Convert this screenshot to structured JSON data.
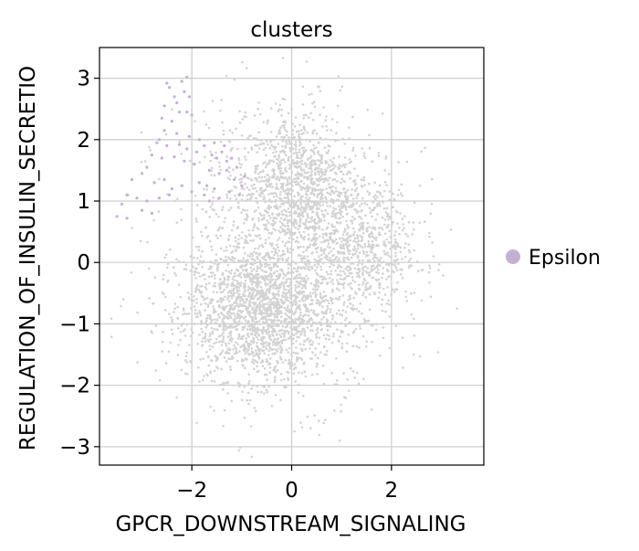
{
  "chart_data": {
    "type": "scatter",
    "title": "clusters",
    "xlabel": "GPCR_DOWNSTREAM_SIGNALING",
    "ylabel": "REGULATION_OF_INSULIN_SECRETIO",
    "xlim": [
      -3.85,
      3.85
    ],
    "ylim": [
      -3.3,
      3.5
    ],
    "x_ticks": [
      -2,
      0,
      2
    ],
    "x_tick_labels": [
      "−2",
      "0",
      "2"
    ],
    "y_ticks": [
      -3,
      -2,
      -1,
      0,
      1,
      2,
      3
    ],
    "y_tick_labels": [
      "−3",
      "−2",
      "−1",
      "0",
      "1",
      "2",
      "3"
    ],
    "grid": true,
    "legend_position": "right",
    "series": [
      {
        "name": "Epsilon",
        "color": "#c5b0d5",
        "points": [
          [
            -2.5,
            2.92
          ],
          [
            -2.45,
            2.85
          ],
          [
            -2.2,
            2.95
          ],
          [
            -2.15,
            2.78
          ],
          [
            -2.05,
            2.7
          ],
          [
            -2.1,
            3.02
          ],
          [
            -2.3,
            2.6
          ],
          [
            -2.25,
            2.45
          ],
          [
            -2.1,
            2.45
          ],
          [
            -2.0,
            2.4
          ],
          [
            -2.6,
            2.35
          ],
          [
            -2.4,
            2.3
          ],
          [
            -2.55,
            2.15
          ],
          [
            -2.3,
            2.1
          ],
          [
            -2.05,
            2.05
          ],
          [
            -2.7,
            1.95
          ],
          [
            -2.5,
            1.9
          ],
          [
            -2.25,
            1.92
          ],
          [
            -2.1,
            1.85
          ],
          [
            -1.9,
            1.8
          ],
          [
            -2.8,
            1.75
          ],
          [
            -2.6,
            1.7
          ],
          [
            -2.35,
            1.72
          ],
          [
            -2.15,
            1.65
          ],
          [
            -1.95,
            1.6
          ],
          [
            -1.75,
            1.9
          ],
          [
            -1.6,
            1.75
          ],
          [
            -1.5,
            1.7
          ],
          [
            -1.4,
            1.8
          ],
          [
            -1.3,
            1.65
          ],
          [
            -1.2,
            1.7
          ],
          [
            -1.1,
            1.55
          ],
          [
            -1.3,
            1.5
          ],
          [
            -1.45,
            1.45
          ],
          [
            -1.65,
            1.5
          ],
          [
            -2.9,
            1.55
          ],
          [
            -3.0,
            1.45
          ],
          [
            -3.2,
            1.35
          ],
          [
            -2.75,
            1.3
          ],
          [
            -2.55,
            1.35
          ],
          [
            -2.4,
            1.2
          ],
          [
            -2.2,
            1.25
          ],
          [
            -1.85,
            1.3
          ],
          [
            -1.7,
            1.25
          ],
          [
            -1.55,
            1.2
          ],
          [
            -1.0,
            1.25
          ],
          [
            -1.05,
            1.1
          ],
          [
            -1.25,
            1.15
          ],
          [
            -1.45,
            1.05
          ],
          [
            -1.65,
            1.0
          ],
          [
            -3.3,
            1.1
          ],
          [
            -3.1,
            1.05
          ],
          [
            -2.9,
            1.0
          ],
          [
            -2.65,
            1.05
          ],
          [
            -3.4,
            0.95
          ],
          [
            -3.0,
            0.85
          ],
          [
            -2.8,
            0.8
          ],
          [
            -3.3,
            0.72
          ],
          [
            -3.5,
            0.75
          ],
          [
            -2.45,
            1.1
          ],
          [
            -2.0,
            1.15
          ],
          [
            -1.75,
            1.1
          ],
          [
            -2.55,
            2.55
          ],
          [
            -2.35,
            2.7
          ],
          [
            -1.85,
            2.0
          ],
          [
            -1.55,
            1.95
          ],
          [
            -1.35,
            1.9
          ],
          [
            -0.95,
            1.4
          ],
          [
            -1.15,
            1.35
          ],
          [
            -2.65,
            2.0
          ]
        ]
      }
    ],
    "background_points": {
      "color": "#d3d3d3",
      "count": 4200,
      "clusters": [
        {
          "cx": -0.6,
          "cy": -0.8,
          "sx": 0.75,
          "sy": 0.55,
          "n": 1700
        },
        {
          "cx": 0.1,
          "cy": 1.3,
          "sx": 0.55,
          "sy": 0.55,
          "n": 900
        },
        {
          "cx": 1.4,
          "cy": 0.2,
          "sx": 0.6,
          "sy": 0.55,
          "n": 650
        },
        {
          "cx": -0.3,
          "cy": 0.2,
          "sx": 1.2,
          "sy": 1.2,
          "n": 950
        }
      ]
    }
  }
}
